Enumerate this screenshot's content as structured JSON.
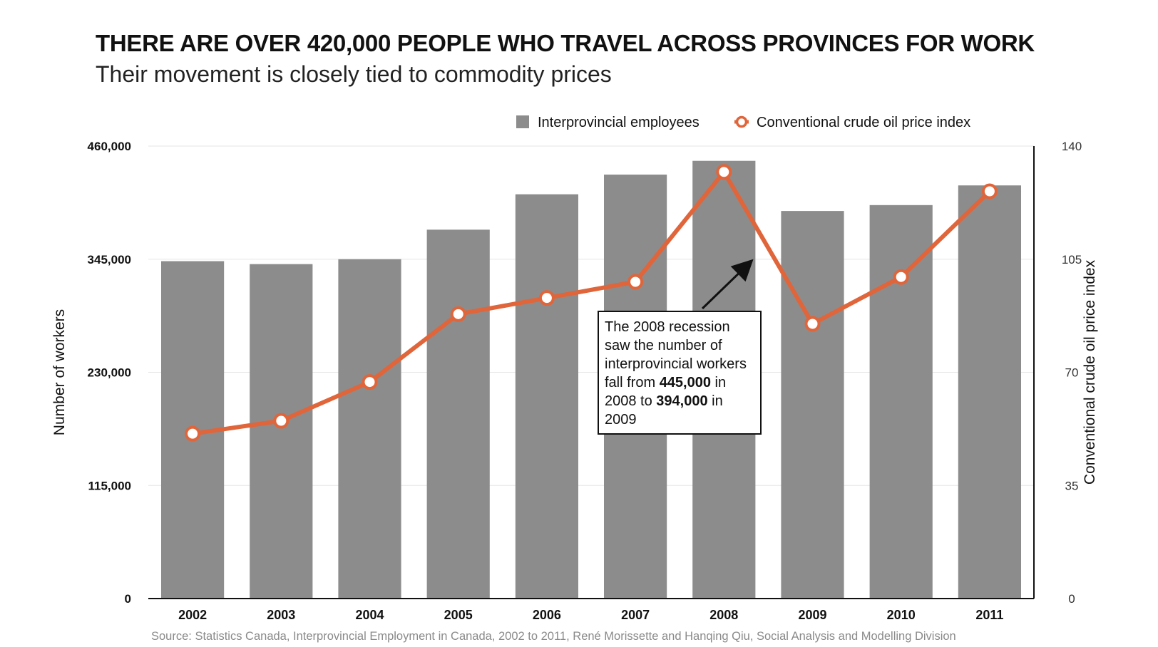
{
  "title": "THERE ARE OVER 420,000 PEOPLE WHO TRAVEL ACROSS PROVINCES FOR WORK",
  "subtitle": "Their movement is closely tied to commodity prices",
  "source": "Source: Statistics Canada, Interprovincial Employment in Canada, 2002 to 2011, René Morissette and Hanqing Qiu, Social Analysis and Modelling Division",
  "annotation": {
    "line1": "The 2008 recession saw the number of interprovincial workers fall from ",
    "value_2008": "445,000",
    "mid": " in 2008 to ",
    "value_2009": "394,000",
    "end": " in 2009"
  },
  "colors": {
    "bar": "#8c8c8c",
    "line": "#e0653a",
    "marker_fill": "#ffffff",
    "grid": "#e6e6e6",
    "axis": "#111111"
  },
  "chart_data": {
    "type": "bar",
    "categories": [
      "2002",
      "2003",
      "2004",
      "2005",
      "2006",
      "2007",
      "2008",
      "2009",
      "2010",
      "2011"
    ],
    "series": [
      {
        "name": "Interprovincial employees",
        "type": "bar",
        "axis": "left",
        "values": [
          343000,
          340000,
          345000,
          375000,
          411000,
          431000,
          445000,
          394000,
          400000,
          420000
        ]
      },
      {
        "name": "Conventional crude oil price index",
        "type": "line",
        "axis": "right",
        "values": [
          51,
          55,
          67,
          88,
          93,
          98,
          132,
          85,
          99.5,
          126
        ]
      }
    ],
    "ylabel": "Number of workers",
    "y2label": "Conventional crude oil price index",
    "xlabel": "",
    "ylim": [
      0,
      460000
    ],
    "y2lim": [
      0,
      140
    ],
    "yticks": [
      "0",
      "115,000",
      "230,000",
      "345,000",
      "460,000"
    ],
    "y2ticks": [
      "0",
      "35",
      "70",
      "105",
      "140"
    ],
    "grid": true,
    "legend_position": "top-right"
  }
}
